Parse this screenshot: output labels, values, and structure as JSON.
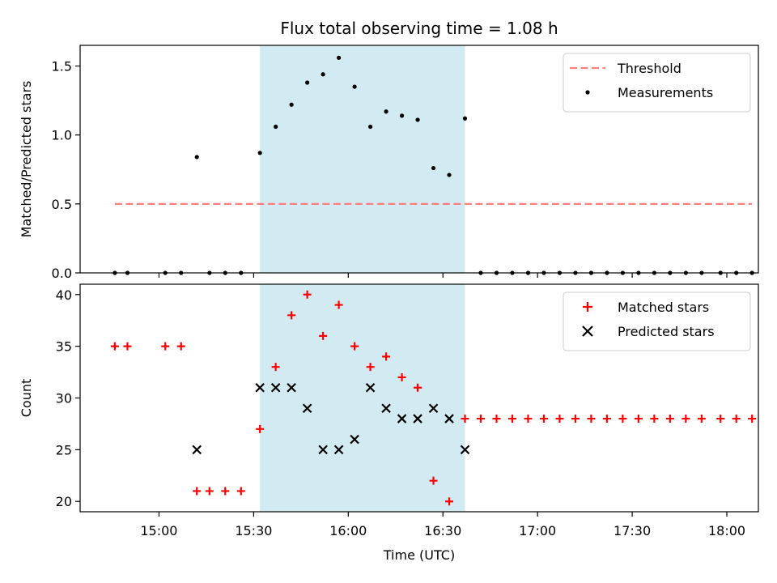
{
  "chart_data": {
    "title": "Flux total observing time = 1.08 h",
    "xlabel": "Time (UTC)",
    "x_ticks": [
      "15:00",
      "15:30",
      "16:00",
      "16:30",
      "17:00",
      "17:30",
      "18:00"
    ],
    "xlim": [
      "14:35",
      "18:10"
    ],
    "shaded_region": [
      "15:32",
      "16:37"
    ],
    "shade_color": "#add8e6",
    "panels": [
      {
        "type": "scatter",
        "ylabel": "Matched/Predicted stars",
        "ylim": [
          0,
          1.65
        ],
        "y_ticks": [
          0.0,
          0.5,
          1.0,
          1.5
        ],
        "y_tick_labels": [
          "0.0",
          "0.5",
          "1.0",
          "1.5"
        ],
        "legend_position": "top-right",
        "threshold": {
          "name": "Threshold",
          "value": 0.5,
          "x_range": [
            "14:46",
            "18:08"
          ],
          "color": "#ff7f7f"
        },
        "series": [
          {
            "name": "Measurements",
            "marker": "dot",
            "color": "#000000",
            "x": [
              "14:46",
              "14:50",
              "15:02",
              "15:07",
              "15:16",
              "15:21",
              "15:26",
              "15:32",
              "15:37",
              "15:42",
              "15:47",
              "15:52",
              "15:57",
              "16:02",
              "16:07",
              "16:12",
              "16:17",
              "16:22",
              "16:27",
              "16:32",
              "16:37",
              "16:42",
              "16:47",
              "16:52",
              "16:57",
              "17:02",
              "17:07",
              "17:12",
              "17:17",
              "17:22",
              "17:27",
              "17:32",
              "17:37",
              "17:42",
              "17:47",
              "17:52",
              "17:58",
              "18:03",
              "18:08",
              "15:12"
            ],
            "y": [
              0,
              0,
              0,
              0,
              0,
              0,
              0,
              0.87,
              1.06,
              1.22,
              1.38,
              1.44,
              1.56,
              1.35,
              1.06,
              1.17,
              1.14,
              1.11,
              0.76,
              0.71,
              1.12,
              0,
              0,
              0,
              0,
              0,
              0,
              0,
              0,
              0,
              0,
              0,
              0,
              0,
              0,
              0,
              0,
              0,
              0,
              0.84
            ]
          }
        ]
      },
      {
        "type": "scatter",
        "ylabel": "Count",
        "ylim": [
          19,
          41
        ],
        "y_ticks": [
          20,
          25,
          30,
          35,
          40
        ],
        "y_tick_labels": [
          "20",
          "25",
          "30",
          "35",
          "40"
        ],
        "legend_position": "top-right",
        "series": [
          {
            "name": "Matched stars",
            "marker": "plus",
            "color": "#ff0000",
            "x": [
              "14:46",
              "14:50",
              "15:02",
              "15:07",
              "15:12",
              "15:16",
              "15:21",
              "15:26",
              "15:32",
              "15:37",
              "15:42",
              "15:47",
              "15:52",
              "15:57",
              "16:02",
              "16:07",
              "16:12",
              "16:17",
              "16:22",
              "16:27",
              "16:32",
              "16:37",
              "16:42",
              "16:47",
              "16:52",
              "16:57",
              "17:02",
              "17:07",
              "17:12",
              "17:17",
              "17:22",
              "17:27",
              "17:32",
              "17:37",
              "17:42",
              "17:47",
              "17:52",
              "17:58",
              "18:03",
              "18:08"
            ],
            "y": [
              35,
              35,
              35,
              35,
              21,
              21,
              21,
              21,
              27,
              33,
              38,
              40,
              36,
              39,
              35,
              33,
              34,
              32,
              31,
              22,
              20,
              28,
              28,
              28,
              28,
              28,
              28,
              28,
              28,
              28,
              28,
              28,
              28,
              28,
              28,
              28,
              28,
              28,
              28,
              28
            ]
          },
          {
            "name": "Predicted stars",
            "marker": "x",
            "color": "#000000",
            "x": [
              "15:12",
              "15:32",
              "15:37",
              "15:42",
              "15:47",
              "15:52",
              "15:57",
              "16:02",
              "16:07",
              "16:12",
              "16:17",
              "16:22",
              "16:27",
              "16:32",
              "16:37"
            ],
            "y": [
              25,
              31,
              31,
              31,
              29,
              25,
              25,
              26,
              31,
              29,
              28,
              28,
              29,
              28,
              25
            ]
          }
        ]
      }
    ]
  }
}
